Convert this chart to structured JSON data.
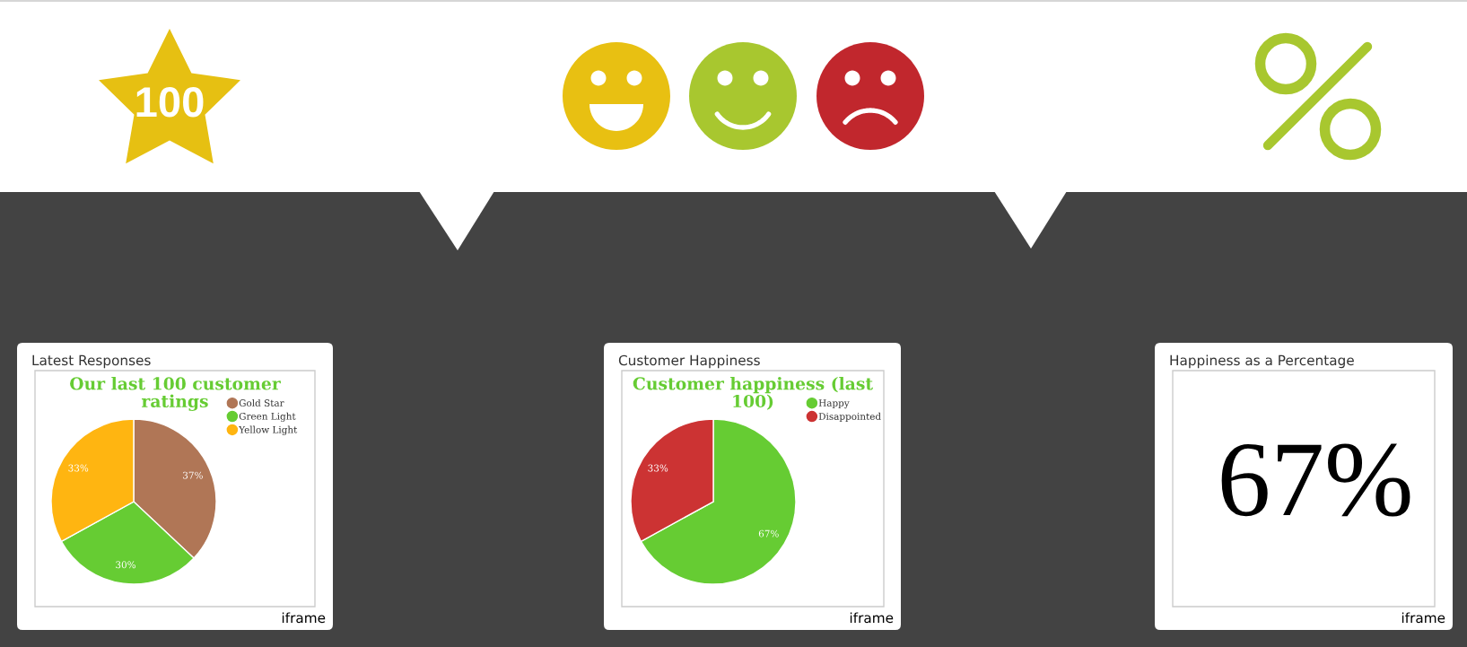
{
  "chart_data": [
    {
      "type": "pie",
      "title": "Latest Responses",
      "subtitle": "Our last 100 customer ratings",
      "categories": [
        "Gold Star",
        "Green Light",
        "Yellow Light"
      ],
      "values": [
        37,
        30,
        33
      ],
      "colors": [
        "#b07656",
        "#66cc33",
        "#ffb511"
      ],
      "value_labels": [
        "37%",
        "30%",
        "33%"
      ],
      "legend": "top right",
      "annotations": [
        "100",
        "iframe"
      ]
    },
    {
      "type": "pie",
      "title": "Customer Happiness",
      "subtitle": "Customer happiness (last 100)",
      "categories": [
        "Happy",
        "Disappointed"
      ],
      "values": [
        67,
        33
      ],
      "colors": [
        "#66cc33",
        "#cc3333"
      ],
      "value_labels": [
        "67%",
        "33%"
      ],
      "legend": "top right",
      "annotations": [
        "iframe"
      ]
    },
    {
      "type": "other",
      "title": "Happiness as a Percentage",
      "annotations": [
        "67%",
        "iframe"
      ]
    }
  ]
}
